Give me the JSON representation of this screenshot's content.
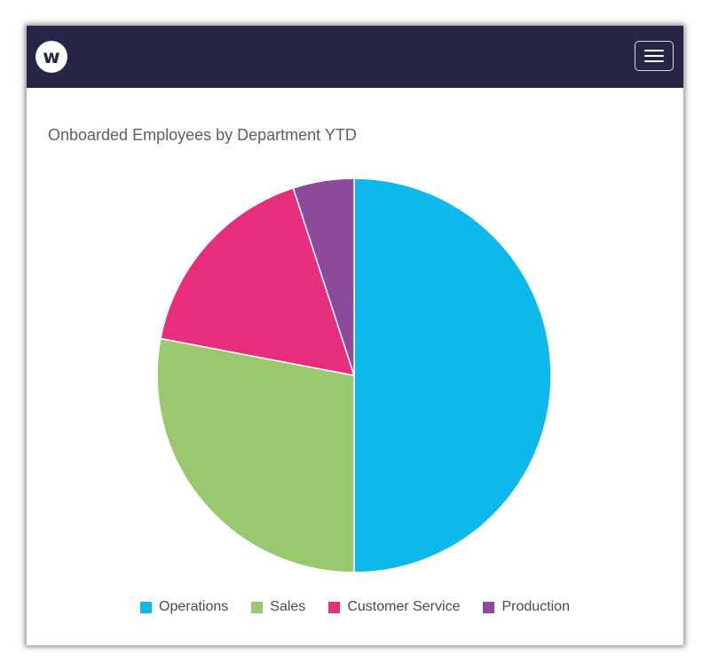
{
  "header": {
    "logo_text": "w",
    "logo_icon": "brand-logo-icon",
    "menu_icon": "hamburger-menu-icon",
    "background": "#262546"
  },
  "chart_data": {
    "type": "pie",
    "title": "Onboarded Employees by Department YTD",
    "slices": [
      {
        "label": "Operations",
        "value": 50,
        "color": "#0DB8EC"
      },
      {
        "label": "Sales",
        "value": 28,
        "color": "#99C86F"
      },
      {
        "label": "Customer Service",
        "value": 17,
        "color": "#E72E7D"
      },
      {
        "label": "Production",
        "value": 5,
        "color": "#8B4A9B"
      }
    ],
    "start_angle": "12 o'clock",
    "direction": "clockwise",
    "legend_position": "bottom"
  }
}
